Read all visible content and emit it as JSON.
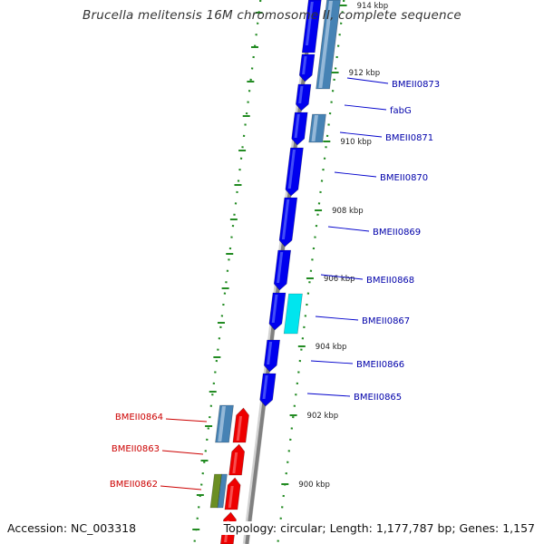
{
  "title": "Brucella melitensis 16M chromosome II, complete sequence",
  "footer": {
    "accession": "Accession: NC_003318",
    "summary": "Topology: circular; Length: 1,177,787 bp; Genes: 1,157"
  },
  "colors": {
    "forward_cds": "#0000ee",
    "reverse_cds": "#ee0000",
    "other_feature": "#4682b4",
    "rna_feature": "#00e5ee",
    "olive_feature": "#6b8e23",
    "tick": "#228b22",
    "backbone": "#808080",
    "label_forward": "#0000aa",
    "label_reverse": "#cc0000"
  },
  "ticks": [
    "914 kbp",
    "912 kbp",
    "910 kbp",
    "908 kbp",
    "906 kbp",
    "904 kbp",
    "902 kbp",
    "900 kbp"
  ],
  "forward_labels": [
    "BMEII0873",
    "fabG",
    "BMEII0871",
    "BMEII0870",
    "BMEII0869",
    "BMEII0868",
    "BMEII0867",
    "BMEII0866",
    "BMEII0865"
  ],
  "reverse_labels": [
    "BMEII0864",
    "BMEII0863",
    "BMEII0862"
  ]
}
